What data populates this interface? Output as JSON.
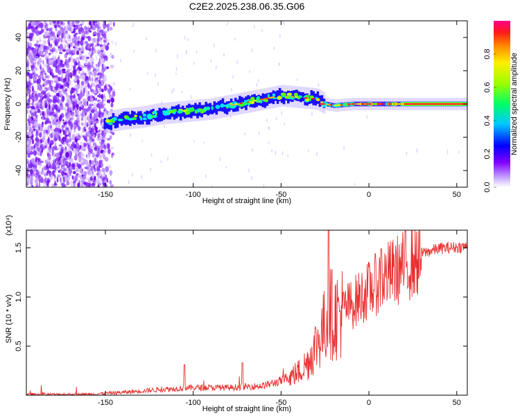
{
  "title": "C2E2.2025.238.06.35.G06",
  "chart_data": [
    {
      "type": "heatmap",
      "xlabel": "Height of straight line (km)",
      "ylabel": "Frequency (Hz)",
      "xlim": [
        -195,
        56
      ],
      "ylim": [
        -50,
        50
      ],
      "x_ticks": [
        -150,
        -100,
        -50,
        0,
        50
      ],
      "y_ticks": [
        -40,
        -20,
        0,
        20,
        40
      ],
      "colorbar": {
        "label": "Normalized spectral amplitude",
        "range": [
          0,
          1
        ],
        "ticks": [
          "0.0",
          "0.2",
          "0.4",
          "0.6",
          "0.8"
        ],
        "colormap": [
          "#ffffff",
          "#e6ccff",
          "#9933ff",
          "#6600cc",
          "#0000ff",
          "#00ffff",
          "#00ff66",
          "#66ff00",
          "#ffff00",
          "#ff9900",
          "#ff0000",
          "#ff0088"
        ]
      },
      "ridge": {
        "x": [
          -150,
          -140,
          -130,
          -120,
          -110,
          -100,
          -90,
          -80,
          -70,
          -60,
          -50,
          -40,
          -30,
          -25,
          -20,
          -10,
          0,
          10,
          20,
          30,
          40,
          50,
          56
        ],
        "y": [
          -11,
          -9,
          -8,
          -6,
          -5,
          -4,
          -3,
          -1,
          1,
          3,
          5,
          4,
          3,
          0,
          -1,
          0,
          0,
          0,
          0,
          0,
          0,
          0,
          0
        ]
      }
    },
    {
      "type": "line",
      "xlabel": "Height of straight line (km)",
      "ylabel": "SNR (10 * v/v)",
      "y_scale_label": "(x10⁴)",
      "xlim": [
        -195,
        56
      ],
      "ylim": [
        0,
        1.68
      ],
      "x_ticks": [
        -150,
        -100,
        -50,
        0,
        50
      ],
      "y_ticks": [
        "0.5",
        "1.0",
        "1.5"
      ],
      "color": "#e83030",
      "envelope": {
        "x": [
          -195,
          -160,
          -140,
          -120,
          -100,
          -80,
          -60,
          -50,
          -40,
          -35,
          -30,
          -25,
          -22,
          -20,
          -10,
          0,
          10,
          20,
          30,
          40,
          56
        ],
        "y": [
          0.01,
          0.01,
          0.03,
          0.06,
          0.08,
          0.08,
          0.1,
          0.15,
          0.25,
          0.35,
          0.55,
          0.75,
          0.9,
          0.85,
          0.95,
          1.1,
          1.25,
          1.35,
          1.45,
          1.5,
          1.52
        ]
      },
      "peaks": [
        {
          "x": -105,
          "y": 0.31
        },
        {
          "x": -72,
          "y": 0.33
        },
        {
          "x": -23,
          "y": 1.68
        },
        {
          "x": 7,
          "y": 1.49
        }
      ]
    }
  ],
  "tick_format": {
    "minus": "-"
  }
}
